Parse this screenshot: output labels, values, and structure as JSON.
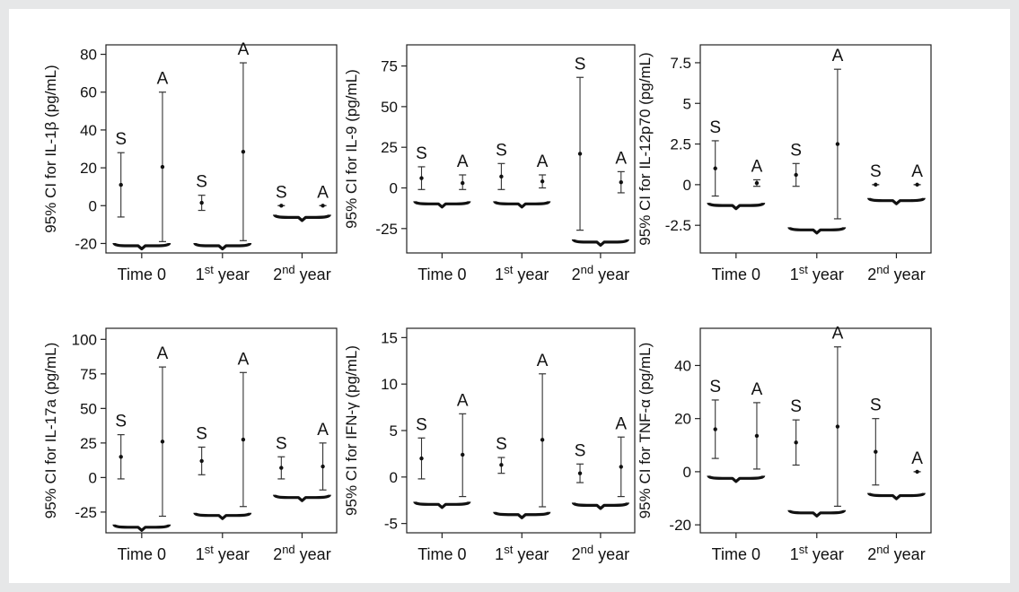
{
  "chart_data": [
    {
      "type": "errorbar",
      "ylabel": "95% CI for IL-1β (pg/mL)",
      "yticks": [
        80,
        60,
        40,
        20,
        0,
        -20
      ],
      "ylim": [
        -25,
        85
      ],
      "categories": [
        {
          "main": "Time 0"
        },
        {
          "main": "1",
          "sup": "st",
          "rest": " year"
        },
        {
          "main": "2",
          "sup": "nd",
          "rest": " year"
        }
      ],
      "series": [
        {
          "name": "S",
          "points": [
            {
              "mean": 11,
              "low": -6,
              "high": 28
            },
            {
              "mean": 1.5,
              "low": -2.5,
              "high": 5.5
            },
            {
              "mean": 0,
              "low": 0,
              "high": 0
            }
          ]
        },
        {
          "name": "A",
          "points": [
            {
              "mean": 20.5,
              "low": -19,
              "high": 60
            },
            {
              "mean": 28.5,
              "low": -18.5,
              "high": 75.5
            },
            {
              "mean": 0,
              "low": 0,
              "high": 0
            }
          ]
        }
      ],
      "brace_y": [
        -20.5,
        -20.5,
        -5.5
      ]
    },
    {
      "type": "errorbar",
      "ylabel": "95% CI for IL-9 (pg/mL)",
      "yticks": [
        75,
        50,
        25,
        0,
        -25
      ],
      "ylim": [
        -40,
        88
      ],
      "categories": [
        {
          "main": "Time 0"
        },
        {
          "main": "1",
          "sup": "st",
          "rest": " year"
        },
        {
          "main": "2",
          "sup": "nd",
          "rest": " year"
        }
      ],
      "series": [
        {
          "name": "S",
          "points": [
            {
              "mean": 6,
              "low": -1,
              "high": 13
            },
            {
              "mean": 7,
              "low": -1,
              "high": 15
            },
            {
              "mean": 21,
              "low": -26,
              "high": 68
            }
          ]
        },
        {
          "name": "A",
          "points": [
            {
              "mean": 3,
              "low": -1,
              "high": 8
            },
            {
              "mean": 4,
              "low": 0,
              "high": 8
            },
            {
              "mean": 3.5,
              "low": -3,
              "high": 10
            }
          ]
        }
      ],
      "brace_y": [
        -9,
        -9,
        -32.5
      ]
    },
    {
      "type": "errorbar",
      "ylabel": "95% CI for IL-12p70 (pg/mL)",
      "yticks": [
        7.5,
        5,
        2.5,
        0,
        -2.5
      ],
      "ylim": [
        -4.2,
        8.6
      ],
      "categories": [
        {
          "main": "Time 0"
        },
        {
          "main": "1",
          "sup": "st",
          "rest": " year"
        },
        {
          "main": "2",
          "sup": "nd",
          "rest": " year"
        }
      ],
      "series": [
        {
          "name": "S",
          "points": [
            {
              "mean": 1,
              "low": -0.7,
              "high": 2.7
            },
            {
              "mean": 0.6,
              "low": -0.1,
              "high": 1.3
            },
            {
              "mean": 0,
              "low": 0,
              "high": 0
            }
          ]
        },
        {
          "name": "A",
          "points": [
            {
              "mean": 0.1,
              "low": -0.1,
              "high": 0.3
            },
            {
              "mean": 2.5,
              "low": -2.1,
              "high": 7.1
            },
            {
              "mean": 0,
              "low": 0,
              "high": 0
            }
          ]
        }
      ],
      "brace_y": [
        -1.2,
        -2.7,
        -0.9
      ]
    },
    {
      "type": "errorbar",
      "ylabel": "95% CI for IL-17a (pg/mL)",
      "yticks": [
        100,
        75,
        50,
        25,
        0,
        -25
      ],
      "ylim": [
        -40,
        108
      ],
      "categories": [
        {
          "main": "Time 0"
        },
        {
          "main": "1",
          "sup": "st",
          "rest": " year"
        },
        {
          "main": "2",
          "sup": "nd",
          "rest": " year"
        }
      ],
      "series": [
        {
          "name": "S",
          "points": [
            {
              "mean": 15,
              "low": -1,
              "high": 31
            },
            {
              "mean": 12,
              "low": 2,
              "high": 22
            },
            {
              "mean": 7,
              "low": -1,
              "high": 15
            }
          ]
        },
        {
          "name": "A",
          "points": [
            {
              "mean": 26,
              "low": -28,
              "high": 80
            },
            {
              "mean": 27.5,
              "low": -21,
              "high": 76
            },
            {
              "mean": 8,
              "low": -9,
              "high": 25
            }
          ]
        }
      ],
      "brace_y": [
        -35,
        -26.5,
        -13.5
      ]
    },
    {
      "type": "errorbar",
      "ylabel": "95% CI for IFN-γ (pg/mL)",
      "yticks": [
        15,
        10,
        5,
        0,
        -5
      ],
      "ylim": [
        -6,
        16
      ],
      "categories": [
        {
          "main": "Time 0"
        },
        {
          "main": "1",
          "sup": "st",
          "rest": " year"
        },
        {
          "main": "2",
          "sup": "nd",
          "rest": " year"
        }
      ],
      "series": [
        {
          "name": "S",
          "points": [
            {
              "mean": 2,
              "low": -0.2,
              "high": 4.2
            },
            {
              "mean": 1.3,
              "low": 0.4,
              "high": 2.1
            },
            {
              "mean": 0.4,
              "low": -0.6,
              "high": 1.4
            }
          ]
        },
        {
          "name": "A",
          "points": [
            {
              "mean": 2.4,
              "low": -2.1,
              "high": 6.8
            },
            {
              "mean": 4,
              "low": -3.2,
              "high": 11.1
            },
            {
              "mean": 1.1,
              "low": -2.1,
              "high": 4.3
            }
          ]
        }
      ],
      "brace_y": [
        -2.8,
        -3.9,
        -2.9
      ]
    },
    {
      "type": "errorbar",
      "ylabel": "95% CI for TNF-α (pg/mL)",
      "yticks": [
        40,
        20,
        0,
        -20
      ],
      "ylim": [
        -23,
        54
      ],
      "categories": [
        {
          "main": "Time 0"
        },
        {
          "main": "1",
          "sup": "st",
          "rest": " year"
        },
        {
          "main": "2",
          "sup": "nd",
          "rest": " year"
        }
      ],
      "series": [
        {
          "name": "S",
          "points": [
            {
              "mean": 16,
              "low": 5,
              "high": 27
            },
            {
              "mean": 11,
              "low": 2.5,
              "high": 19.5
            },
            {
              "mean": 7.5,
              "low": -5,
              "high": 20
            }
          ]
        },
        {
          "name": "A",
          "points": [
            {
              "mean": 13.5,
              "low": 1,
              "high": 26
            },
            {
              "mean": 17,
              "low": -13,
              "high": 47
            },
            {
              "mean": 0,
              "low": 0,
              "high": 0
            }
          ]
        }
      ],
      "brace_y": [
        -2,
        -15,
        -8.5
      ]
    }
  ]
}
